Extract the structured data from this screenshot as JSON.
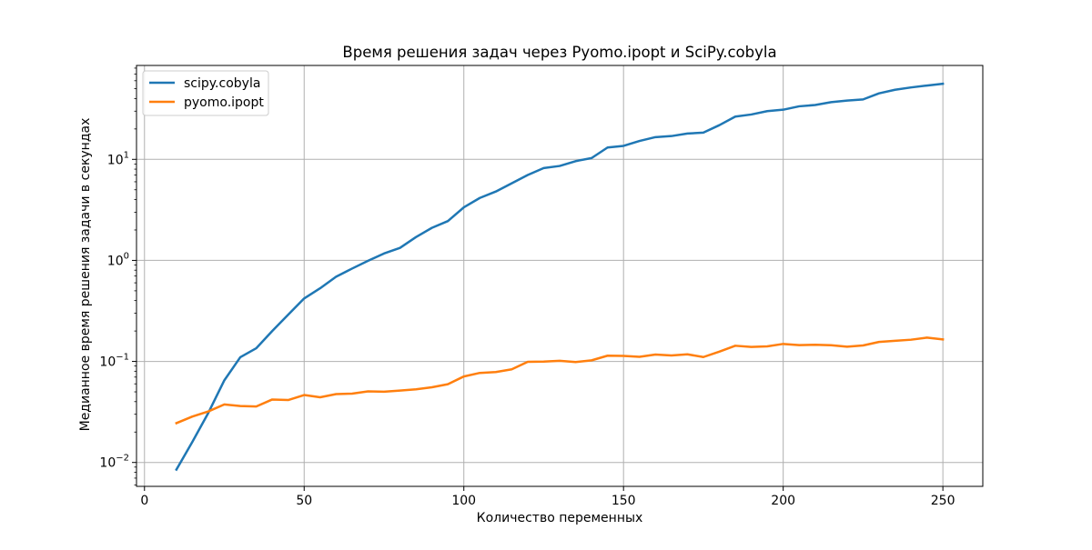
{
  "chart_data": {
    "type": "line",
    "title": "Время решения задач через Pyomo.ipopt и SciPy.cobyla",
    "xlabel": "Количество переменных",
    "ylabel": "Медианное время решения задачи в секундах",
    "xlim": [
      -2.5,
      262.5
    ],
    "ylim": [
      0.0058,
      85
    ],
    "yscale": "log",
    "grid": true,
    "legend_position": "top-left",
    "x_ticks": [
      0,
      50,
      100,
      150,
      200,
      250
    ],
    "x_tick_labels": [
      "0",
      "50",
      "100",
      "150",
      "200",
      "250"
    ],
    "y_ticks": [
      0.01,
      0.1,
      1,
      10
    ],
    "y_tick_labels": [
      {
        "base": "10",
        "exp": "−2"
      },
      {
        "base": "10",
        "exp": "−1"
      },
      {
        "base": "10",
        "exp": "0"
      },
      {
        "base": "10",
        "exp": "1"
      }
    ],
    "x": [
      10,
      15,
      20,
      25,
      30,
      35,
      40,
      45,
      50,
      55,
      60,
      65,
      70,
      75,
      80,
      85,
      90,
      95,
      100,
      105,
      110,
      115,
      120,
      125,
      130,
      135,
      140,
      145,
      150,
      155,
      160,
      165,
      170,
      175,
      180,
      185,
      190,
      195,
      200,
      205,
      210,
      215,
      220,
      225,
      230,
      235,
      240,
      245,
      250
    ],
    "series": [
      {
        "name": "scipy.cobyla",
        "color": "#1f77b4",
        "values": [
          0.0085,
          0.016,
          0.031,
          0.065,
          0.11,
          0.135,
          0.2,
          0.29,
          0.42,
          0.53,
          0.69,
          0.83,
          0.99,
          1.17,
          1.33,
          1.7,
          2.1,
          2.45,
          3.35,
          4.15,
          4.8,
          5.8,
          7.0,
          8.2,
          8.6,
          9.6,
          10.3,
          13.1,
          13.6,
          15.2,
          16.6,
          17.0,
          18.0,
          18.4,
          21.8,
          26.5,
          27.8,
          30.0,
          31.0,
          33.5,
          34.5,
          36.8,
          38.2,
          39.2,
          45.0,
          48.8,
          51.5,
          53.8,
          56.0
        ]
      },
      {
        "name": "pyomo.ipopt",
        "color": "#ff7f0e",
        "values": [
          0.0245,
          0.0285,
          0.032,
          0.0375,
          0.0362,
          0.0358,
          0.042,
          0.0415,
          0.0465,
          0.0442,
          0.0475,
          0.048,
          0.0505,
          0.0502,
          0.0515,
          0.053,
          0.0555,
          0.0595,
          0.071,
          0.077,
          0.0785,
          0.0835,
          0.099,
          0.0995,
          0.1015,
          0.0985,
          0.1025,
          0.114,
          0.1135,
          0.111,
          0.117,
          0.1145,
          0.1175,
          0.1105,
          0.125,
          0.143,
          0.139,
          0.141,
          0.149,
          0.145,
          0.146,
          0.1445,
          0.14,
          0.144,
          0.156,
          0.16,
          0.164,
          0.172,
          0.165
        ]
      }
    ]
  }
}
